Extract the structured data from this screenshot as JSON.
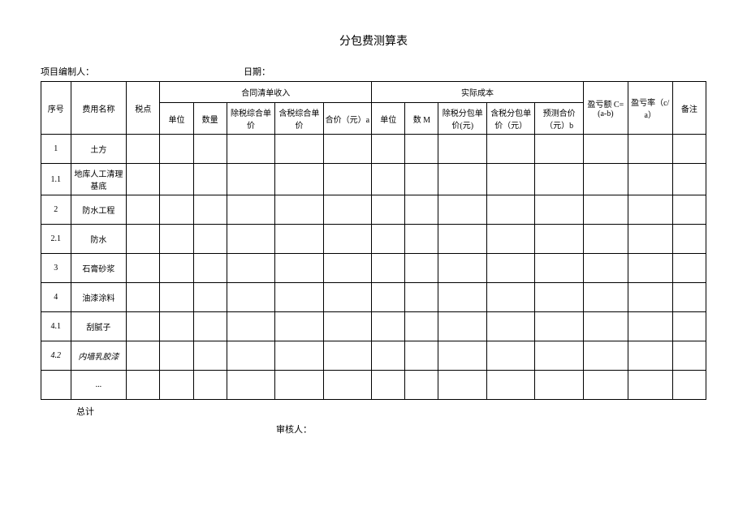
{
  "title": "分包费测算表",
  "meta": {
    "project_label": "项目编制人：",
    "date_label": "日期："
  },
  "headers": {
    "seq": "序号",
    "fee_name": "费用名称",
    "tax_point": "税点",
    "contract_group": "合同清单收入",
    "actual_group": "实际成本",
    "unit": "单位",
    "qty": "数量",
    "ex_tax_unit_price": "除税综合单价",
    "inc_tax_unit_price": "含税综合单价",
    "total_a": "合价（元）a",
    "unit2": "单位",
    "qty_m": "数 M",
    "ex_tax_sub_price": "除税分包单价(元)",
    "inc_tax_sub_price": "含税分包单价（元）",
    "pred_total_b": "预测合价（元）b",
    "profit_c": "盈亏额 C=(a-b)",
    "profit_rate": "盈亏率（c/a）",
    "remark": "备注"
  },
  "rows": [
    {
      "seq": "1",
      "name": "土方",
      "italic": false
    },
    {
      "seq": "1.1",
      "name": "地库人工清理基底",
      "italic": false
    },
    {
      "seq": "2",
      "name": "防水工程",
      "italic": false
    },
    {
      "seq": "2.1",
      "name": "防水",
      "italic": false
    },
    {
      "seq": "3",
      "name": "石膏砂浆",
      "italic": false
    },
    {
      "seq": "4",
      "name": "油漆涂料",
      "italic": false
    },
    {
      "seq": "4.1",
      "name": "刮腻子",
      "italic": false
    },
    {
      "seq": "4.2",
      "name": "内墙乳胶漆",
      "italic": true
    },
    {
      "seq": "",
      "name": "...",
      "italic": false
    }
  ],
  "footer": {
    "total": "总计",
    "reviewer": "审核人："
  },
  "style": {
    "bg": "#ffffff",
    "border": "#000000",
    "text": "#000000"
  }
}
